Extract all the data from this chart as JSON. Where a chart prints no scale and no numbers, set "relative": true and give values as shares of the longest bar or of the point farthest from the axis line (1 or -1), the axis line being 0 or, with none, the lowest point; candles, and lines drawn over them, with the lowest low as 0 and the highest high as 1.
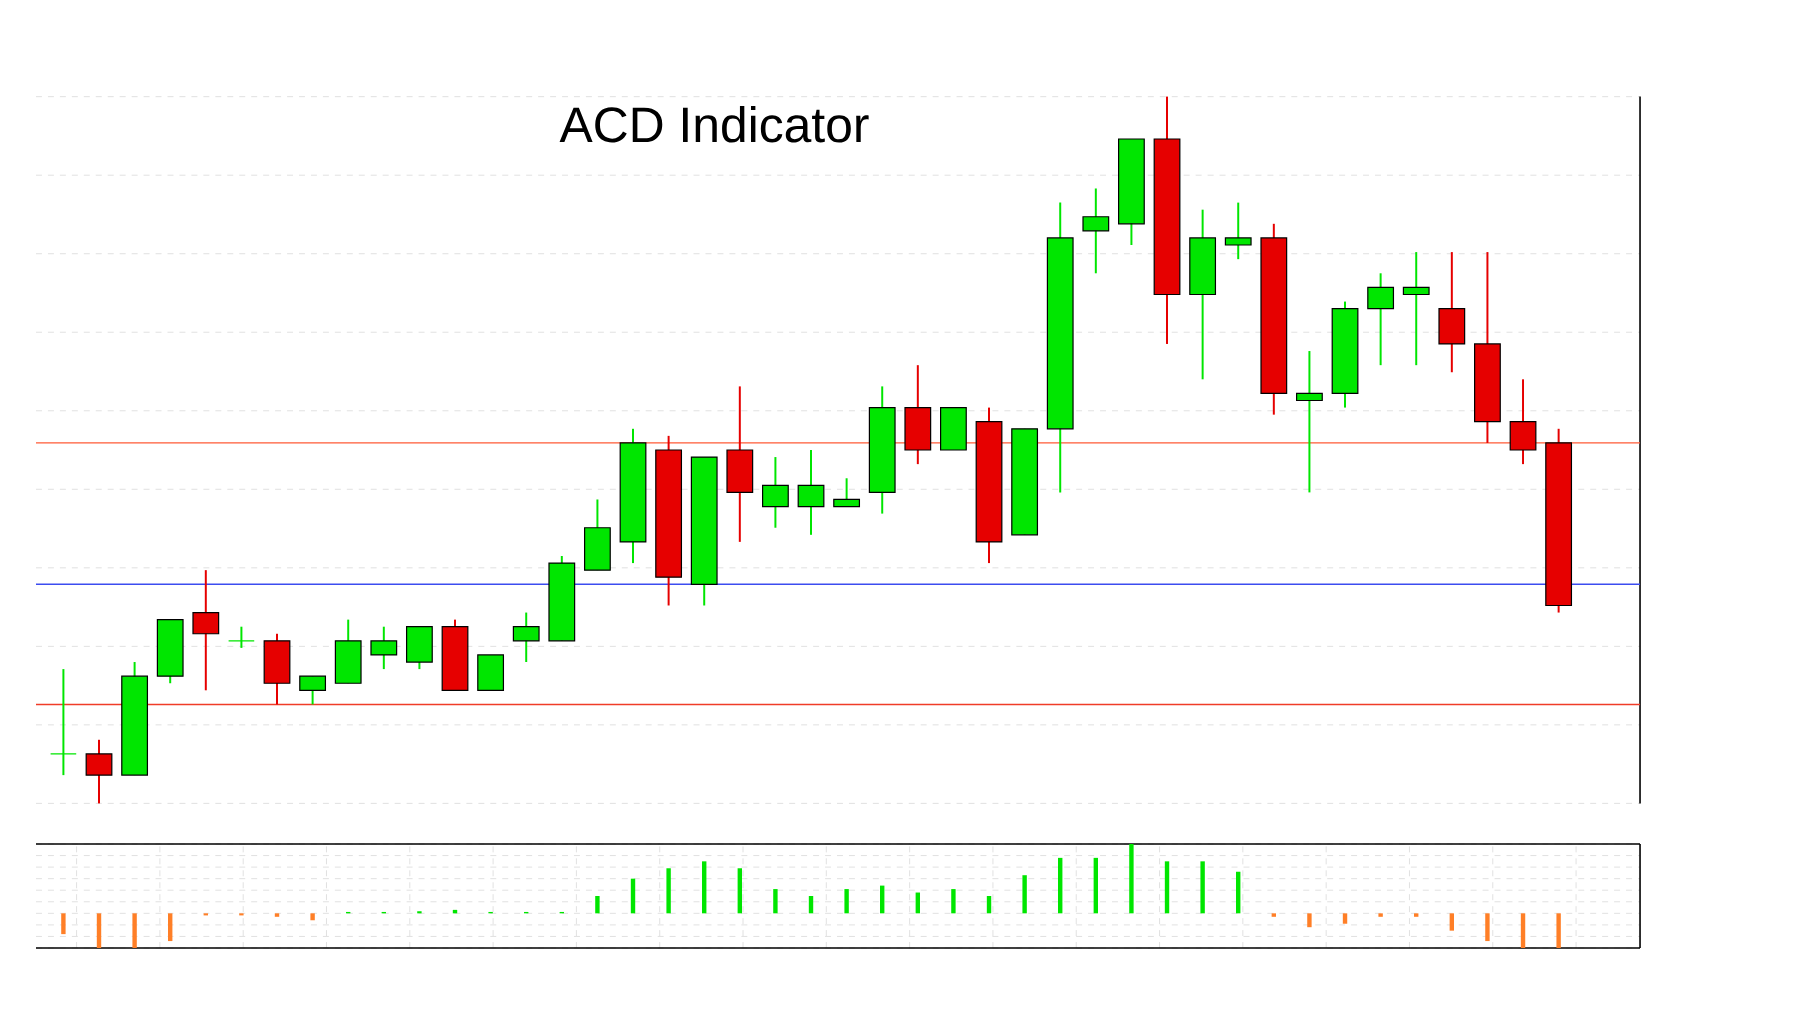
{
  "chart_data": [
    {
      "type": "candlestick",
      "title": "ACD Indicator",
      "relative": true,
      "grid": true,
      "categories": [
        null,
        null,
        null,
        null,
        null,
        null,
        null,
        null,
        null,
        null,
        null,
        null,
        null,
        null,
        null,
        null,
        null,
        null,
        null,
        null,
        null,
        null,
        null,
        null,
        null,
        null,
        null,
        null,
        null,
        null,
        null,
        null,
        null,
        null,
        null,
        null,
        null,
        null,
        null,
        null,
        null,
        null,
        null
      ],
      "ohlc": [
        [
          0.07,
          0.19,
          0.04,
          0.07
        ],
        [
          0.07,
          0.09,
          0,
          0.04
        ],
        [
          0.04,
          0.2,
          0.04,
          0.18
        ],
        [
          0.18,
          0.26,
          0.17,
          0.26
        ],
        [
          0.27,
          0.33,
          0.16,
          0.24
        ],
        [
          0.23,
          0.25,
          0.22,
          0.23
        ],
        [
          0.23,
          0.24,
          0.14,
          0.17
        ],
        [
          0.16,
          0.18,
          0.14,
          0.18
        ],
        [
          0.17,
          0.26,
          0.17,
          0.23
        ],
        [
          0.21,
          0.25,
          0.19,
          0.23
        ],
        [
          0.2,
          0.25,
          0.19,
          0.25
        ],
        [
          0.25,
          0.26,
          0.16,
          0.16
        ],
        [
          0.16,
          0.21,
          0.16,
          0.21
        ],
        [
          0.23,
          0.27,
          0.2,
          0.25
        ],
        [
          0.23,
          0.35,
          0.23,
          0.34
        ],
        [
          0.33,
          0.43,
          0.33,
          0.39
        ],
        [
          0.37,
          0.53,
          0.34,
          0.51
        ],
        [
          0.5,
          0.52,
          0.28,
          0.32
        ],
        [
          0.31,
          0.49,
          0.28,
          0.49
        ],
        [
          0.5,
          0.59,
          0.37,
          0.44
        ],
        [
          0.42,
          0.49,
          0.39,
          0.45
        ],
        [
          0.42,
          0.5,
          0.38,
          0.45
        ],
        [
          0.42,
          0.46,
          0.42,
          0.43
        ],
        [
          0.44,
          0.59,
          0.41,
          0.56
        ],
        [
          0.56,
          0.62,
          0.48,
          0.5
        ],
        [
          0.5,
          0.56,
          0.5,
          0.56
        ],
        [
          0.54,
          0.56,
          0.34,
          0.37
        ],
        [
          0.38,
          0.53,
          0.38,
          0.53
        ],
        [
          0.53,
          0.85,
          0.44,
          0.8
        ],
        [
          0.81,
          0.87,
          0.75,
          0.83
        ],
        [
          0.82,
          0.94,
          0.79,
          0.94
        ],
        [
          0.94,
          1,
          0.65,
          0.72
        ],
        [
          0.72,
          0.84,
          0.6,
          0.8
        ],
        [
          0.79,
          0.85,
          0.77,
          0.8
        ],
        [
          0.8,
          0.82,
          0.55,
          0.58
        ],
        [
          0.57,
          0.64,
          0.44,
          0.58
        ],
        [
          0.58,
          0.71,
          0.56,
          0.7
        ],
        [
          0.7,
          0.75,
          0.62,
          0.73
        ],
        [
          0.72,
          0.78,
          0.62,
          0.73
        ],
        [
          0.7,
          0.78,
          0.61,
          0.65
        ],
        [
          0.65,
          0.78,
          0.51,
          0.54
        ],
        [
          0.54,
          0.6,
          0.48,
          0.5
        ],
        [
          0.51,
          0.53,
          0.27,
          0.28
        ]
      ],
      "colors": [
        "#00e600",
        "#e60000",
        "#00e600",
        "#00e600",
        "#e60000",
        "#00e600",
        "#e60000",
        "#00e600",
        "#00e600",
        "#00e600",
        "#00e600",
        "#e60000",
        "#00e600",
        "#00e600",
        "#00e600",
        "#00e600",
        "#00e600",
        "#e60000",
        "#00e600",
        "#e60000",
        "#00e600",
        "#00e600",
        "#00e600",
        "#00e600",
        "#e60000",
        "#00e600",
        "#e60000",
        "#00e600",
        "#00e600",
        "#00e600",
        "#00e600",
        "#e60000",
        "#00e600",
        "#00e600",
        "#e60000",
        "#00e600",
        "#00e600",
        "#00e600",
        "#00e600",
        "#e60000",
        "#e60000",
        "#e60000",
        "#e60000"
      ],
      "ref_lines": [
        {
          "axis": "y",
          "value": 0.51,
          "color": "#ff5a36"
        },
        {
          "axis": "y",
          "value": 0.31,
          "color": "#3c4cf0"
        },
        {
          "axis": "y",
          "value": 0.14,
          "color": "#f03c28"
        }
      ]
    },
    {
      "type": "bar",
      "relative": true,
      "grid": true,
      "categories": [
        null,
        null,
        null,
        null,
        null,
        null,
        null,
        null,
        null,
        null,
        null,
        null,
        null,
        null,
        null,
        null,
        null,
        null,
        null,
        null,
        null,
        null,
        null,
        null,
        null,
        null,
        null,
        null,
        null,
        null,
        null,
        null,
        null,
        null,
        null,
        null,
        null,
        null,
        null,
        null,
        null,
        null,
        null
      ],
      "values": [
        -0.3,
        -0.5,
        -0.5,
        -0.4,
        -0.03,
        -0.03,
        -0.05,
        -0.1,
        0.02,
        0.02,
        0.03,
        0.05,
        0.02,
        0.02,
        0.02,
        0.25,
        0.5,
        0.65,
        0.75,
        0.65,
        0.35,
        0.25,
        0.35,
        0.4,
        0.3,
        0.35,
        0.25,
        0.55,
        0.8,
        0.8,
        1,
        0.75,
        0.75,
        0.6,
        -0.05,
        -0.2,
        -0.15,
        -0.05,
        -0.05,
        -0.25,
        -0.4,
        -0.5,
        -0.5
      ],
      "colors": [
        "#ff7f27",
        "#ff7f27",
        "#ff7f27",
        "#ff7f27",
        "#ff7f27",
        "#ff7f27",
        "#ff7f27",
        "#ff7f27",
        "#00e600",
        "#00e600",
        "#00e600",
        "#00e600",
        "#00e600",
        "#00e600",
        "#00e600",
        "#00e600",
        "#00e600",
        "#00e600",
        "#00e600",
        "#00e600",
        "#00e600",
        "#00e600",
        "#00e600",
        "#00e600",
        "#00e600",
        "#00e600",
        "#00e600",
        "#00e600",
        "#00e600",
        "#00e600",
        "#00e600",
        "#00e600",
        "#00e600",
        "#00e600",
        "#ff7f27",
        "#ff7f27",
        "#ff7f27",
        "#ff7f27",
        "#ff7f27",
        "#ff7f27",
        "#ff7f27",
        "#ff7f27",
        "#ff7f27"
      ]
    }
  ]
}
